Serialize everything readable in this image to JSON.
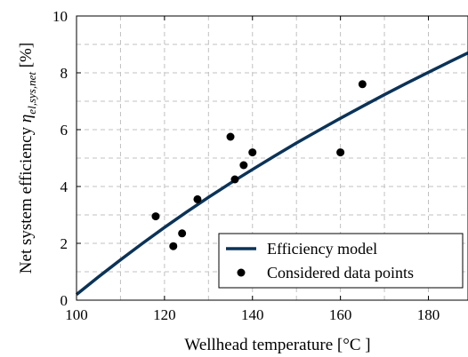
{
  "chart_data": {
    "type": "scatter",
    "xlabel": "Wellhead temperature [°C ]",
    "ylabel_main": "Net system efficiency ",
    "ylabel_symbol": "η",
    "ylabel_subscript": "el,sys,net",
    "ylabel_unit": " [%]",
    "xlim": [
      100,
      189
    ],
    "ylim": [
      0,
      10
    ],
    "xticks": [
      100,
      120,
      140,
      160,
      180
    ],
    "yticks": [
      0,
      2,
      4,
      6,
      8,
      10
    ],
    "grid": true,
    "legend_position": "bottom-right",
    "series": [
      {
        "name": "Efficiency model",
        "kind": "line",
        "color": "#0b3358",
        "x": [
          100,
          105,
          110,
          115,
          120,
          125,
          130,
          135,
          140,
          145,
          150,
          155,
          160,
          165,
          170,
          175,
          180,
          185,
          189
        ],
        "y": [
          0.2,
          0.82,
          1.42,
          2.0,
          2.56,
          3.1,
          3.62,
          4.12,
          4.6,
          5.07,
          5.53,
          5.97,
          6.4,
          6.82,
          7.23,
          7.63,
          8.02,
          8.4,
          8.7
        ]
      },
      {
        "name": "Considered data points",
        "kind": "scatter",
        "color": "#000000",
        "x": [
          118,
          122,
          124,
          127.5,
          135,
          136,
          138,
          140,
          160,
          165
        ],
        "y": [
          2.95,
          1.9,
          2.35,
          3.55,
          5.75,
          4.25,
          4.75,
          5.2,
          5.2,
          7.6
        ]
      }
    ]
  }
}
